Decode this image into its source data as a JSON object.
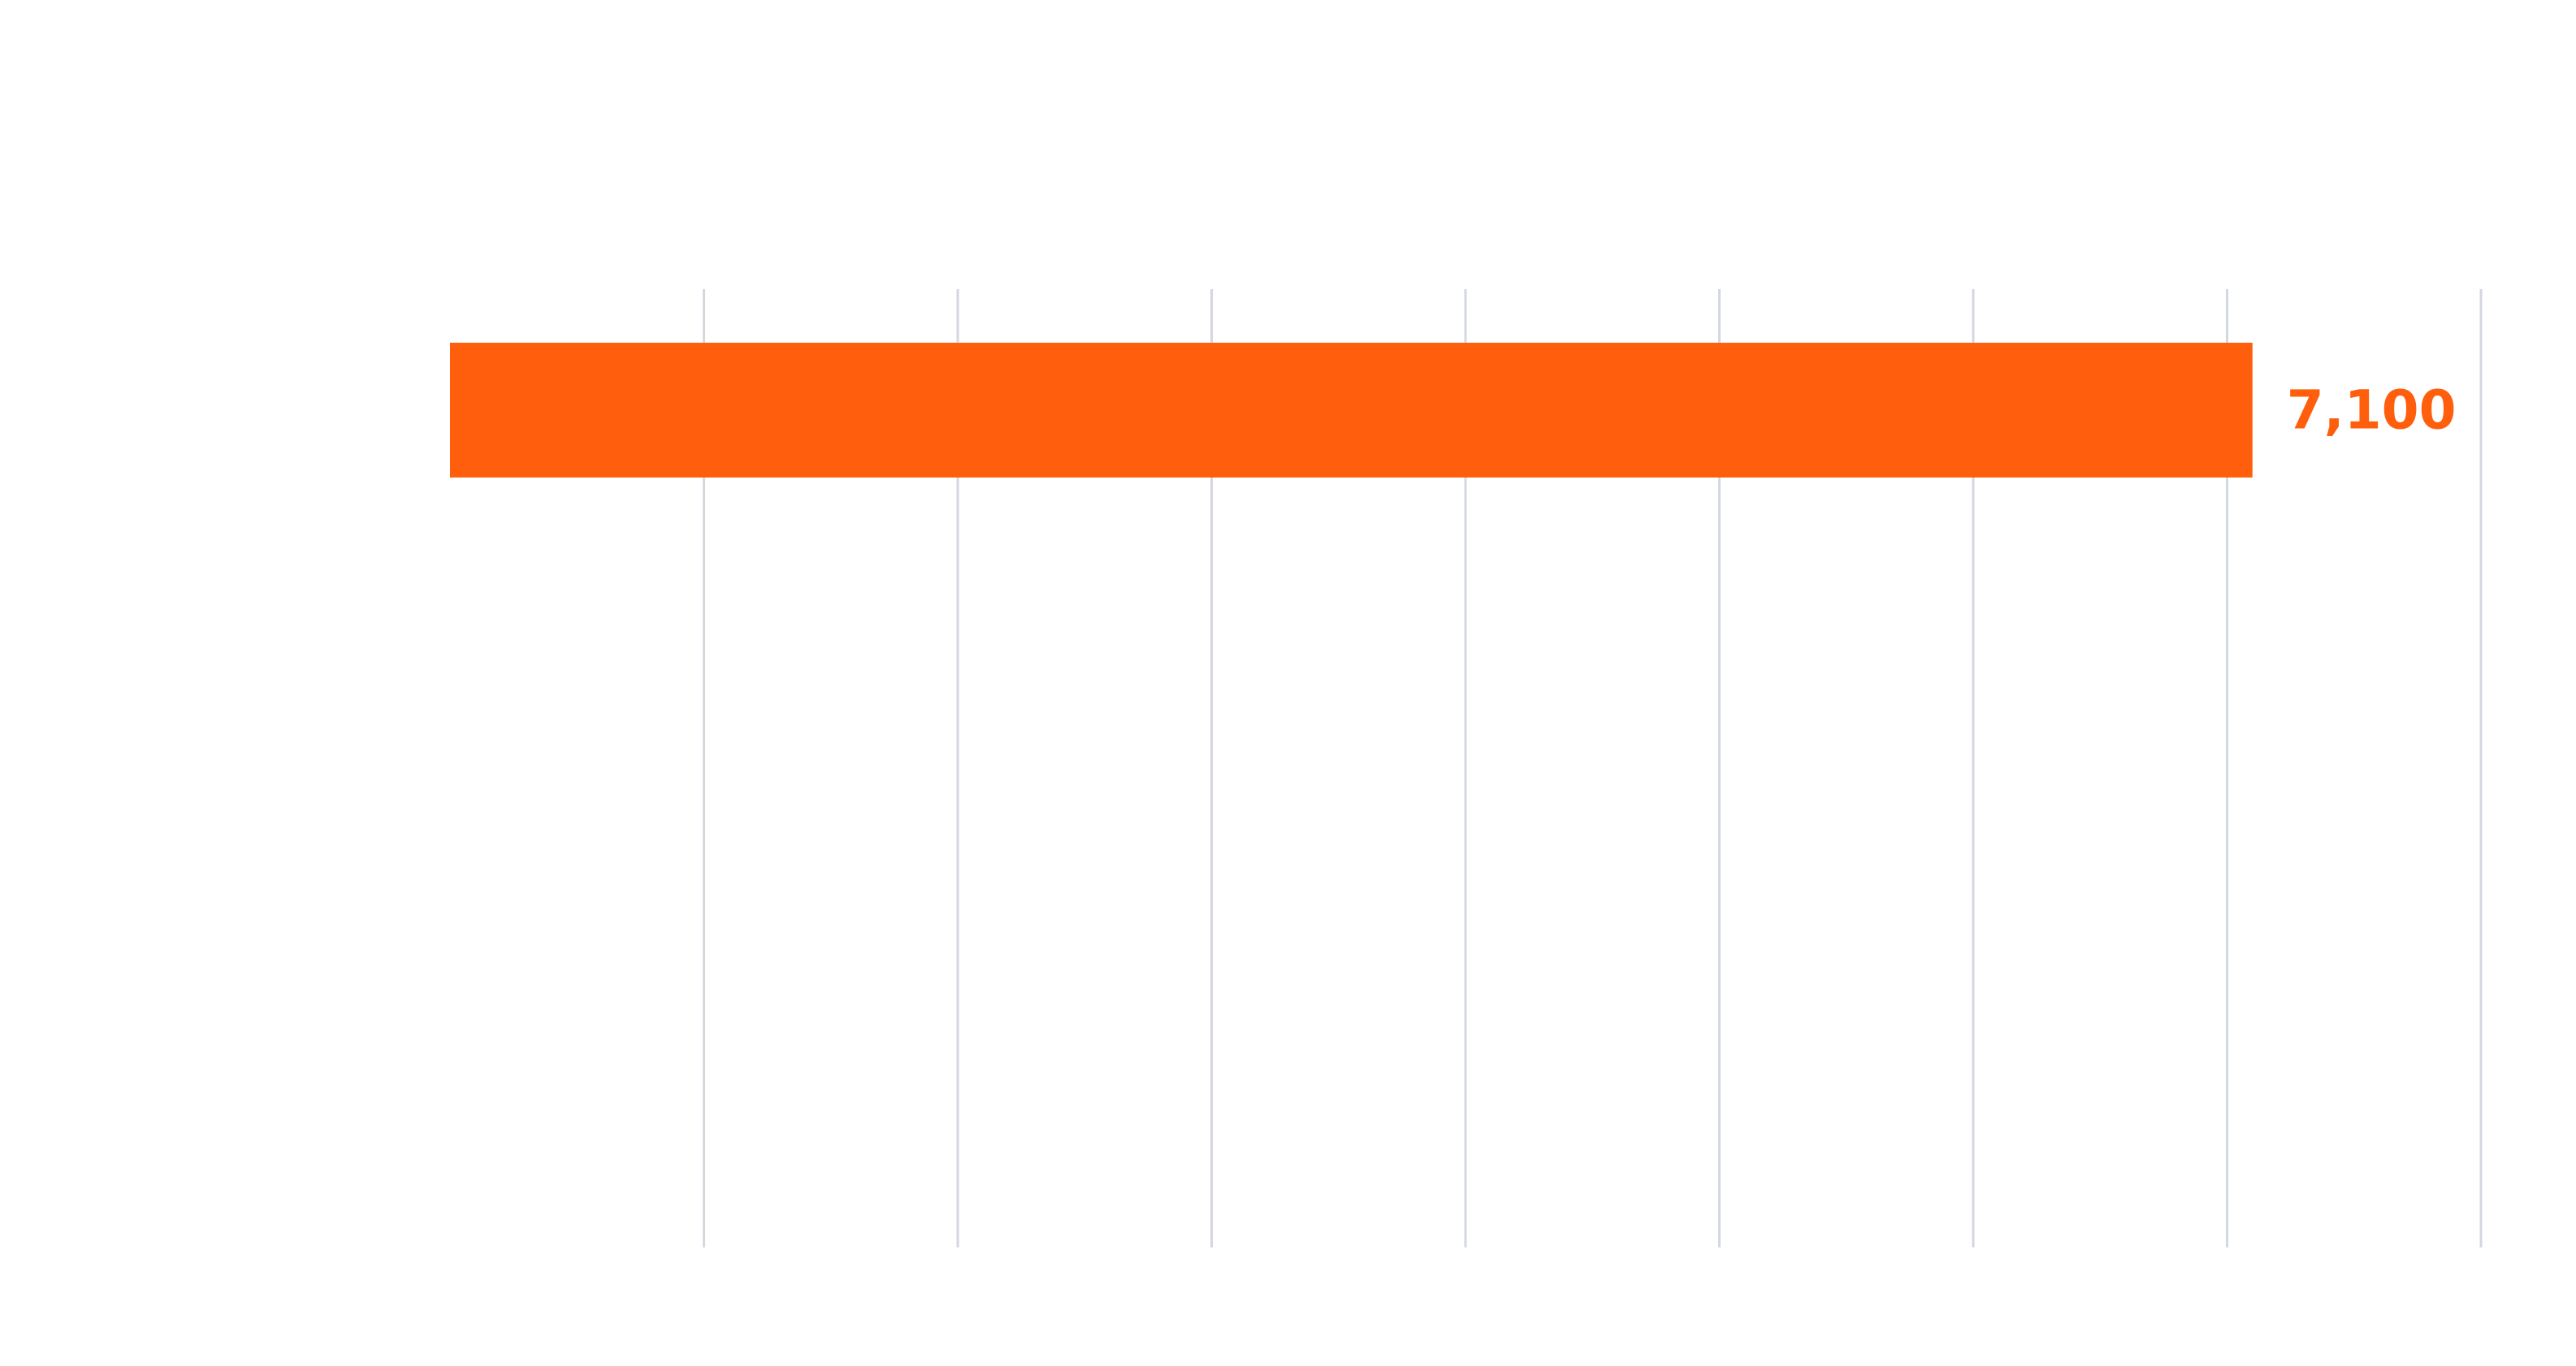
{
  "chart_data": {
    "type": "bar",
    "orientation": "horizontal",
    "categories": [
      ""
    ],
    "series": [
      {
        "values": [
          7100
        ]
      }
    ],
    "data_labels": [
      "7,100"
    ],
    "xlim": [
      0,
      8000
    ],
    "x_gridlines": [
      1000,
      2000,
      3000,
      4000,
      5000,
      6000,
      7000,
      8000
    ],
    "grid": true,
    "bar_color": "#FF5F0C",
    "label_color": "#FF5F0C",
    "gridline_color": "#D3D7E0",
    "title": "",
    "xlabel": "",
    "ylabel": ""
  }
}
